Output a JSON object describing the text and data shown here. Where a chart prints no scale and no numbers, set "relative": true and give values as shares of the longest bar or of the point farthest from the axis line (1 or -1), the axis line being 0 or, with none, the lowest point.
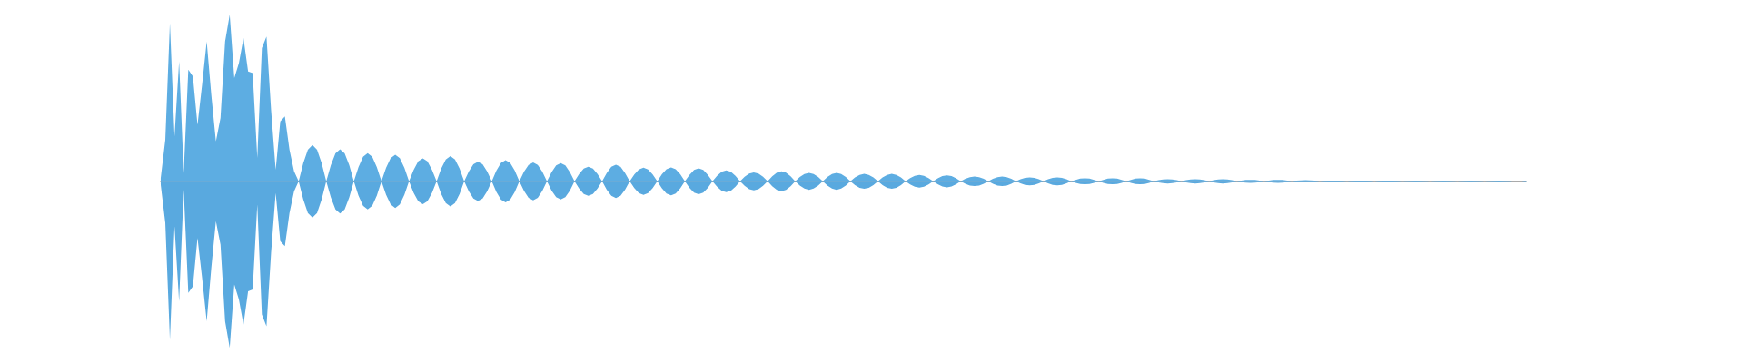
{
  "chart_data": {
    "type": "area",
    "relative": true,
    "tick_labels": false,
    "categories": [
      null,
      null,
      null,
      null,
      null,
      null,
      null,
      null,
      null,
      null,
      null,
      null,
      null,
      null,
      null,
      null,
      null,
      null,
      null,
      null,
      null,
      null,
      null,
      null,
      null,
      null,
      null,
      null,
      null,
      null,
      null,
      null,
      null,
      null,
      null,
      null,
      null,
      null,
      null,
      null,
      null,
      null,
      null,
      null,
      null,
      null,
      null,
      null,
      null,
      null,
      null,
      null,
      null,
      null,
      null,
      null,
      null,
      null,
      null,
      null,
      null,
      null,
      null,
      null,
      null,
      null,
      null,
      null,
      null,
      null,
      null,
      null,
      null,
      null,
      null,
      null,
      null,
      null,
      null,
      null,
      null,
      null,
      null,
      null,
      null,
      null,
      null,
      null,
      null,
      null,
      null,
      null,
      null,
      null,
      null,
      null,
      null,
      null,
      null,
      null,
      null,
      null,
      null,
      null,
      null,
      null,
      null,
      null,
      null,
      null,
      null,
      null,
      null,
      null,
      null,
      null,
      null,
      null,
      null,
      null,
      null,
      null,
      null,
      null,
      null,
      null,
      null,
      null,
      null,
      null,
      null,
      null,
      null,
      null,
      null,
      null,
      null,
      null,
      null,
      null,
      null,
      null,
      null,
      null,
      null,
      null,
      null,
      null,
      null,
      null,
      null,
      null,
      null,
      null,
      null,
      null,
      null,
      null,
      null,
      null,
      null,
      null,
      null,
      null,
      null,
      null,
      null,
      null,
      null,
      null,
      null,
      null,
      null,
      null,
      null,
      null,
      null,
      null,
      null,
      null,
      null,
      null,
      null,
      null,
      null,
      null,
      null,
      null,
      null,
      null,
      null,
      null,
      null,
      null,
      null,
      null,
      null,
      null,
      null,
      null,
      null,
      null,
      null,
      null,
      null,
      null,
      null,
      null,
      null,
      null,
      null,
      null,
      null,
      null,
      null,
      null,
      null,
      null,
      null,
      null,
      null,
      null,
      null,
      null,
      null,
      null,
      null,
      null,
      null,
      null,
      null,
      null,
      null,
      null,
      null,
      null,
      null,
      null,
      null,
      null,
      null,
      null,
      null,
      null,
      null,
      null,
      null,
      null,
      null,
      null,
      null,
      null,
      null,
      null,
      null,
      null,
      null,
      null,
      null,
      null,
      null,
      null,
      null,
      null,
      null,
      null,
      null,
      null,
      null,
      null,
      null,
      null,
      null,
      null,
      null,
      null,
      null,
      null,
      null,
      null,
      null,
      null,
      null,
      null,
      null,
      null,
      null,
      null,
      null,
      null,
      null,
      null,
      null,
      null,
      null,
      null,
      null,
      null
    ],
    "series": [
      {
        "color": "#5dade2",
        "values": [
          0.02,
          0.25,
          0.95,
          0.27,
          0.72,
          0.05,
          0.67,
          0.63,
          0.34,
          0.58,
          0.84,
          0.52,
          0.24,
          0.38,
          0.84,
          1.0,
          0.62,
          0.71,
          0.86,
          0.66,
          0.65,
          0.14,
          0.8,
          0.87,
          0.43,
          0.07,
          0.36,
          0.39,
          0.19,
          0.06,
          0,
          0.109,
          0.19,
          0.218,
          0.19,
          0.109,
          0,
          0.097,
          0.168,
          0.193,
          0.168,
          0.097,
          0,
          0.085,
          0.147,
          0.169,
          0.147,
          0.085,
          0,
          0.08,
          0.139,
          0.16,
          0.139,
          0.08,
          0,
          0.069,
          0.12,
          0.138,
          0.12,
          0.069,
          0,
          0.076,
          0.131,
          0.151,
          0.131,
          0.076,
          0,
          0.059,
          0.103,
          0.118,
          0.103,
          0.059,
          0,
          0.064,
          0.11,
          0.127,
          0.11,
          0.064,
          0,
          0.057,
          0.099,
          0.114,
          0.099,
          0.057,
          0,
          0.055,
          0.095,
          0.109,
          0.095,
          0.055,
          0,
          0.044,
          0.076,
          0.087,
          0.076,
          0.044,
          0,
          0.05,
          0.087,
          0.1,
          0.087,
          0.05,
          0,
          0.041,
          0.071,
          0.082,
          0.071,
          0.041,
          0,
          0.042,
          0.073,
          0.084,
          0.073,
          0.042,
          0,
          0.039,
          0.068,
          0.078,
          0.068,
          0.039,
          0,
          0.033,
          0.057,
          0.065,
          0.057,
          0.033,
          0,
          0.027,
          0.047,
          0.054,
          0.047,
          0.027,
          0,
          0.03,
          0.052,
          0.06,
          0.052,
          0.03,
          0,
          0.026,
          0.044,
          0.051,
          0.044,
          0.026,
          0,
          0.026,
          0.044,
          0.051,
          0.044,
          0.026,
          0,
          0.023,
          0.039,
          0.045,
          0.039,
          0.023,
          0,
          0.023,
          0.039,
          0.045,
          0.039,
          0.023,
          0,
          0.019,
          0.033,
          0.038,
          0.033,
          0.019,
          0,
          0.018,
          0.031,
          0.036,
          0.031,
          0.018,
          0,
          0.015,
          0.025,
          0.029,
          0.025,
          0.015,
          0,
          0.015,
          0.025,
          0.029,
          0.025,
          0.015,
          0,
          0.012,
          0.021,
          0.024,
          0.021,
          0.012,
          0,
          0.012,
          0.021,
          0.024,
          0.021,
          0.012,
          0,
          0.009,
          0.016,
          0.018,
          0.016,
          0.009,
          0,
          0.009,
          0.016,
          0.018,
          0.016,
          0.009,
          0,
          0.009,
          0.016,
          0.018,
          0.016,
          0.009,
          0,
          0.007,
          0.011,
          0.013,
          0.011,
          0.007,
          0,
          0.007,
          0.011,
          0.013,
          0.011,
          0.007,
          0,
          0.007,
          0.011,
          0.013,
          0.011,
          0.007,
          0,
          0.005,
          0.008,
          0.009,
          0.008,
          0.005,
          0,
          0.005,
          0.008,
          0.009,
          0.008,
          0.005,
          0,
          0.004,
          0.006,
          0.007,
          0.006,
          0.004,
          0,
          0.003,
          0.004,
          0.005,
          0.004,
          0.003,
          0,
          0.003,
          0.004,
          0.005,
          0.004,
          0.003,
          0,
          0.003,
          0.004,
          0.005,
          0.004,
          0.003,
          0,
          0.002,
          0.003,
          0.004,
          0.003,
          0.002,
          0,
          0.002,
          0.003,
          0.004,
          0.003,
          0.002,
          0,
          0.002,
          0.003,
          0.004,
          0.003,
          0.002,
          0,
          0.002,
          0.003,
          0.004,
          0.003,
          0.002,
          0,
          0,
          0,
          0.003
        ]
      },
      {
        "color": "#59a9df",
        "values": [
          -0.02,
          -0.25,
          -0.95,
          -0.27,
          -0.72,
          -0.05,
          -0.67,
          -0.63,
          -0.34,
          -0.58,
          -0.84,
          -0.52,
          -0.24,
          -0.38,
          -0.84,
          -1.0,
          -0.62,
          -0.71,
          -0.86,
          -0.66,
          -0.65,
          -0.14,
          -0.8,
          -0.87,
          -0.43,
          -0.07,
          -0.36,
          -0.39,
          -0.19,
          -0.06,
          0,
          -0.109,
          -0.19,
          -0.218,
          -0.19,
          -0.109,
          0,
          -0.097,
          -0.168,
          -0.193,
          -0.168,
          -0.097,
          0,
          -0.085,
          -0.147,
          -0.169,
          -0.147,
          -0.085,
          0,
          -0.08,
          -0.139,
          -0.16,
          -0.139,
          -0.08,
          0,
          -0.069,
          -0.12,
          -0.138,
          -0.12,
          -0.069,
          0,
          -0.076,
          -0.131,
          -0.151,
          -0.131,
          -0.076,
          0,
          -0.059,
          -0.103,
          -0.118,
          -0.103,
          -0.059,
          0,
          -0.064,
          -0.11,
          -0.127,
          -0.11,
          -0.064,
          0,
          -0.057,
          -0.099,
          -0.114,
          -0.099,
          -0.057,
          0,
          -0.055,
          -0.095,
          -0.109,
          -0.095,
          -0.055,
          0,
          -0.044,
          -0.076,
          -0.087,
          -0.076,
          -0.044,
          0,
          -0.05,
          -0.087,
          -0.1,
          -0.087,
          -0.05,
          0,
          -0.041,
          -0.071,
          -0.082,
          -0.071,
          -0.041,
          0,
          -0.042,
          -0.073,
          -0.084,
          -0.073,
          -0.042,
          0,
          -0.039,
          -0.068,
          -0.078,
          -0.068,
          -0.039,
          0,
          -0.033,
          -0.057,
          -0.065,
          -0.057,
          -0.033,
          0,
          -0.027,
          -0.047,
          -0.054,
          -0.047,
          -0.027,
          0,
          -0.03,
          -0.052,
          -0.06,
          -0.052,
          -0.03,
          0,
          -0.026,
          -0.044,
          -0.051,
          -0.044,
          -0.026,
          0,
          -0.026,
          -0.044,
          -0.051,
          -0.044,
          -0.026,
          0,
          -0.023,
          -0.039,
          -0.045,
          -0.039,
          -0.023,
          0,
          -0.023,
          -0.039,
          -0.045,
          -0.039,
          -0.023,
          0,
          -0.019,
          -0.033,
          -0.038,
          -0.033,
          -0.019,
          0,
          -0.018,
          -0.031,
          -0.036,
          -0.031,
          -0.018,
          0,
          -0.015,
          -0.025,
          -0.029,
          -0.025,
          -0.015,
          0,
          -0.015,
          -0.025,
          -0.029,
          -0.025,
          -0.015,
          0,
          -0.012,
          -0.021,
          -0.024,
          -0.021,
          -0.012,
          0,
          -0.012,
          -0.021,
          -0.024,
          -0.021,
          -0.012,
          0,
          -0.009,
          -0.016,
          -0.018,
          -0.016,
          -0.009,
          0,
          -0.009,
          -0.016,
          -0.018,
          -0.016,
          -0.009,
          0,
          -0.009,
          -0.016,
          -0.018,
          -0.016,
          -0.009,
          0,
          -0.007,
          -0.011,
          -0.013,
          -0.011,
          -0.007,
          0,
          -0.007,
          -0.011,
          -0.013,
          -0.011,
          -0.007,
          0,
          -0.007,
          -0.011,
          -0.013,
          -0.011,
          -0.007,
          0,
          -0.005,
          -0.008,
          -0.009,
          -0.008,
          -0.005,
          0,
          -0.005,
          -0.008,
          -0.009,
          -0.008,
          -0.005,
          0,
          -0.004,
          -0.006,
          -0.007,
          -0.006,
          -0.004,
          0,
          -0.003,
          -0.004,
          -0.005,
          -0.004,
          -0.003,
          0,
          -0.003,
          -0.004,
          -0.005,
          -0.004,
          -0.003,
          0,
          -0.003,
          -0.004,
          -0.005,
          -0.004,
          -0.003,
          0,
          -0.002,
          -0.003,
          -0.004,
          -0.003,
          -0.002,
          0,
          -0.002,
          -0.003,
          -0.004,
          -0.003,
          -0.002,
          0,
          -0.002,
          -0.003,
          -0.004,
          -0.003,
          -0.002,
          0,
          -0.002,
          -0.003,
          -0.004,
          -0.003,
          -0.002,
          0,
          0,
          0,
          -0.003
        ]
      }
    ]
  }
}
